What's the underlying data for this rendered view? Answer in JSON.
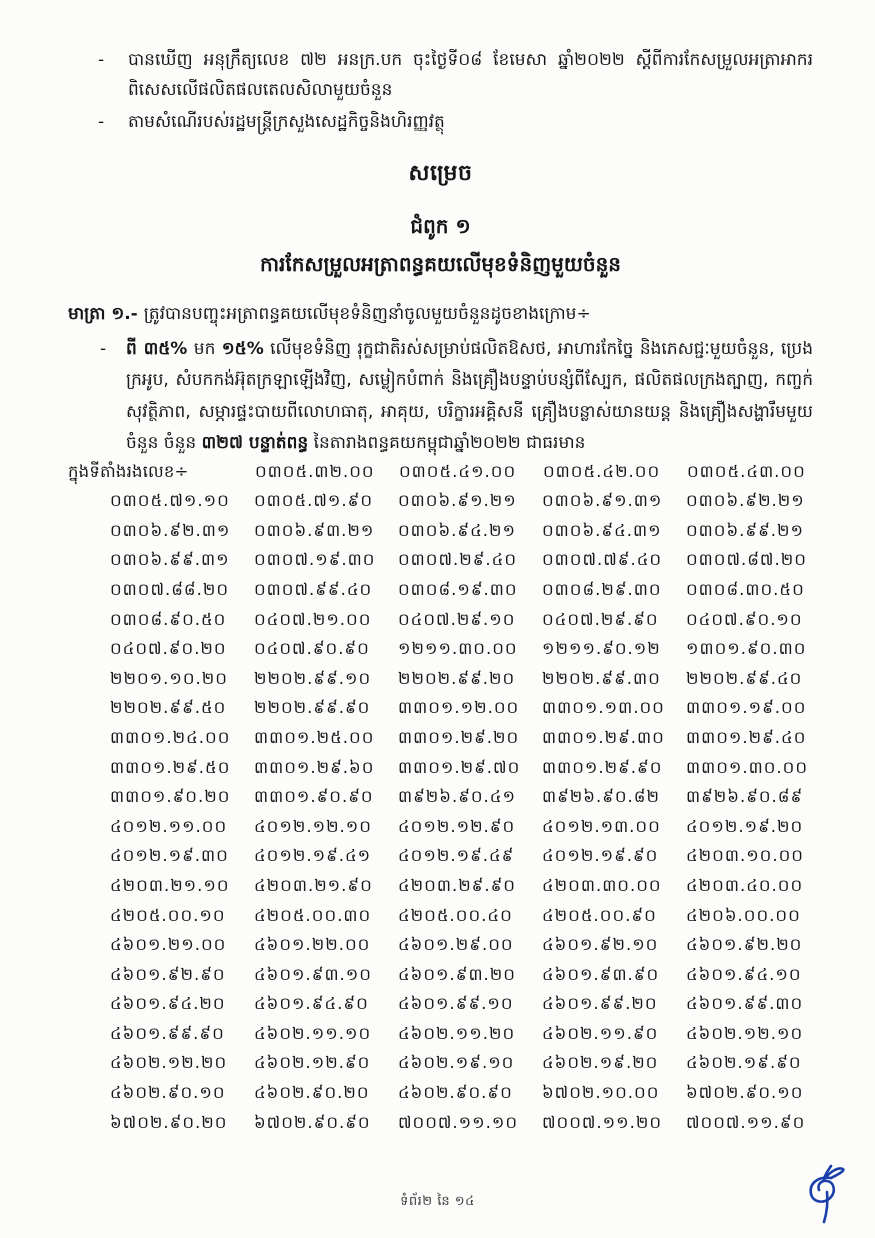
{
  "preamble": {
    "items": [
      {
        "marker": "-",
        "text": "បានឃើញ អនុក្រឹត្យលេខ ៧២ អនក្រ.បក ចុះថ្ងៃទី០៨ ខែមេសា ឆ្នាំ២០២២ ស្តីពីការកែសម្រួលអត្រាអាករពិសេសលើផលិតផលតេលសិលាមួយចំនួន"
      },
      {
        "marker": "-",
        "text": "តាមសំណើរបស់រដ្ឋមន្ត្រីក្រសួងសេដ្ឋកិច្ចនិងហិរញ្ញវត្ថុ"
      }
    ]
  },
  "headings": {
    "decision": "សម្រេច",
    "chapter": "ជំពូក ១",
    "chapter_title": "ការកែសម្រួលអត្រាពន្ធគយលើមុខទំនិញមួយចំនួន"
  },
  "article": {
    "label": "មាត្រា ១.-",
    "intro": "ត្រូវបានបញ្ចុះអត្រាពន្ធគយលើមុខទំនិញនាំចូលមួយចំនួនដូចខាងក្រោម÷",
    "bullet_marker": "-",
    "bullet": {
      "b1": "ពី ៣៥%",
      "n1": " មក ",
      "b2": "១៥%",
      "n2": " លើមុខទំនិញ រុក្ខជាតិរស់សម្រាប់ផលិតឱសថ, អាហារកែច្នៃ និងភេសជ្ជៈមួយចំនួន, ប្រេងក្រអូប, សំបកកង់អ៊ុតក្រឡាឡើងវិញ, សម្លៀកបំពាក់ និងគ្រឿងបន្ទាប់បន្សំពីស្បែក, ផលិតផលក្រងត្បាញ, កញ្ចក់សុវត្ថិភាព, សម្ភារផ្ទះបាយពីលោហធាតុ, អាគុយ, បរិក្ខារអគ្គិសនី គ្រឿងបន្លាស់យានយន្ត និងគ្រឿងសង្ហារឹមមួយចំនួន ចំនួន ",
      "b3": "៣២៧ បន្ទាត់ពន្ធ",
      "n3": " នៃតារាងពន្ធគយកម្ពុជាឆ្នាំ២០២២ ជាធរមាន"
    }
  },
  "table": {
    "row1_label": "ក្នុងទីតាំងរងលេខ÷",
    "rows": [
      [
        "០៣០៥.៣២.០០",
        "០៣០៥.៤១.០០",
        "០៣០៥.៤២.០០",
        "០៣០៥.៤៣.០០"
      ],
      [
        "០៣០៥.៧១.១០",
        "០៣០៥.៧១.៩០",
        "០៣០៦.៩១.២១",
        "០៣០៦.៩១.៣១",
        "០៣០៦.៩២.២១"
      ],
      [
        "០៣០៦.៩២.៣១",
        "០៣០៦.៩៣.២១",
        "០៣០៦.៩៤.២១",
        "០៣០៦.៩៤.៣១",
        "០៣០៦.៩៩.២១"
      ],
      [
        "០៣០៦.៩៩.៣១",
        "០៣០៧.១៩.៣០",
        "០៣០៧.២៩.៤០",
        "០៣០៧.៧៩.៤០",
        "០៣០៧.៨៧.២០"
      ],
      [
        "០៣០៧.៨៨.២០",
        "០៣០៧.៩៩.៤០",
        "០៣០៨.១៩.៣០",
        "០៣០៨.២៩.៣០",
        "០៣០៨.៣០.៥០"
      ],
      [
        "០៣០៨.៩០.៥០",
        "០៤០៧.២១.០០",
        "០៤០៧.២៩.១០",
        "០៤០៧.២៩.៩០",
        "០៤០៧.៩០.១០"
      ],
      [
        "០៤០៧.៩០.២០",
        "០៤០៧.៩០.៩០",
        "១២១១.៣០.០០",
        "១២១១.៩០.១២",
        "១៣០១.៩០.៣០"
      ],
      [
        "២២០១.១០.២០",
        "២២០២.៩៩.១០",
        "២២០២.៩៩.២០",
        "២២០២.៩៩.៣០",
        "២២០២.៩៩.៤០"
      ],
      [
        "២២០២.៩៩.៥០",
        "២២០២.៩៩.៩០",
        "៣៣០១.១២.០០",
        "៣៣០១.១៣.០០",
        "៣៣០១.១៩.០០"
      ],
      [
        "៣៣០១.២៤.០០",
        "៣៣០១.២៥.០០",
        "៣៣០១.២៩.២០",
        "៣៣០១.២៩.៣០",
        "៣៣០១.២៩.៤០"
      ],
      [
        "៣៣០១.២៩.៥០",
        "៣៣០១.២៩.៦០",
        "៣៣០១.២៩.៧០",
        "៣៣០១.២៩.៩០",
        "៣៣០១.៣០.០០"
      ],
      [
        "៣៣០១.៩០.២០",
        "៣៣០១.៩០.៩០",
        "៣៩២៦.៩០.៤១",
        "៣៩២៦.៩០.៨២",
        "៣៩២៦.៩០.៨៩"
      ],
      [
        "៤០១២.១១.០០",
        "៤០១២.១២.១០",
        "៤០១២.១២.៩០",
        "៤០១២.១៣.០០",
        "៤០១២.១៩.២០"
      ],
      [
        "៤០១២.១៩.៣០",
        "៤០១២.១៩.៤១",
        "៤០១២.១៩.៤៩",
        "៤០១២.១៩.៩០",
        "៤២០៣.១០.០០"
      ],
      [
        "៤២០៣.២១.១០",
        "៤២០៣.២១.៩០",
        "៤២០៣.២៩.៩០",
        "៤២០៣.៣០.០០",
        "៤២០៣.៤០.០០"
      ],
      [
        "៤២០៥.០០.១០",
        "៤២០៥.០០.៣០",
        "៤២០៥.០០.៤០",
        "៤២០៥.០០.៩០",
        "៤២០៦.០០.០០"
      ],
      [
        "៤៦០១.២១.០០",
        "៤៦០១.២២.០០",
        "៤៦០១.២៩.០០",
        "៤៦០១.៩២.១០",
        "៤៦០១.៩២.២០"
      ],
      [
        "៤៦០១.៩២.៩០",
        "៤៦០១.៩៣.១០",
        "៤៦០១.៩៣.២០",
        "៤៦០១.៩៣.៩០",
        "៤៦០១.៩៤.១០"
      ],
      [
        "៤៦០១.៩៤.២០",
        "៤៦០១.៩៤.៩០",
        "៤៦០១.៩៩.១០",
        "៤៦០១.៩៩.២០",
        "៤៦០១.៩៩.៣០"
      ],
      [
        "៤៦០១.៩៩.៩០",
        "៤៦០២.១១.១០",
        "៤៦០២.១១.២០",
        "៤៦០២.១១.៩០",
        "៤៦០២.១២.១០"
      ],
      [
        "៤៦០២.១២.២០",
        "៤៦០២.១២.៩០",
        "៤៦០២.១៩.១០",
        "៤៦០២.១៩.២០",
        "៤៦០២.១៩.៩០"
      ],
      [
        "៤៦០២.៩០.១០",
        "៤៦០២.៩០.២០",
        "៤៦០២.៩០.៩០",
        "៦៧០២.១០.០០",
        "៦៧០២.៩០.១០"
      ],
      [
        "៦៧០២.៩០.២០",
        "៦៧០២.៩០.៩០",
        "៧០០៧.១១.១០",
        "៧០០៧.១១.២០",
        "៧០០៧.១១.៩០"
      ]
    ]
  },
  "footer": {
    "page_indicator": "ទំព័រ២ នៃ ១៤"
  },
  "signature": {
    "color": "#1b3faa"
  }
}
